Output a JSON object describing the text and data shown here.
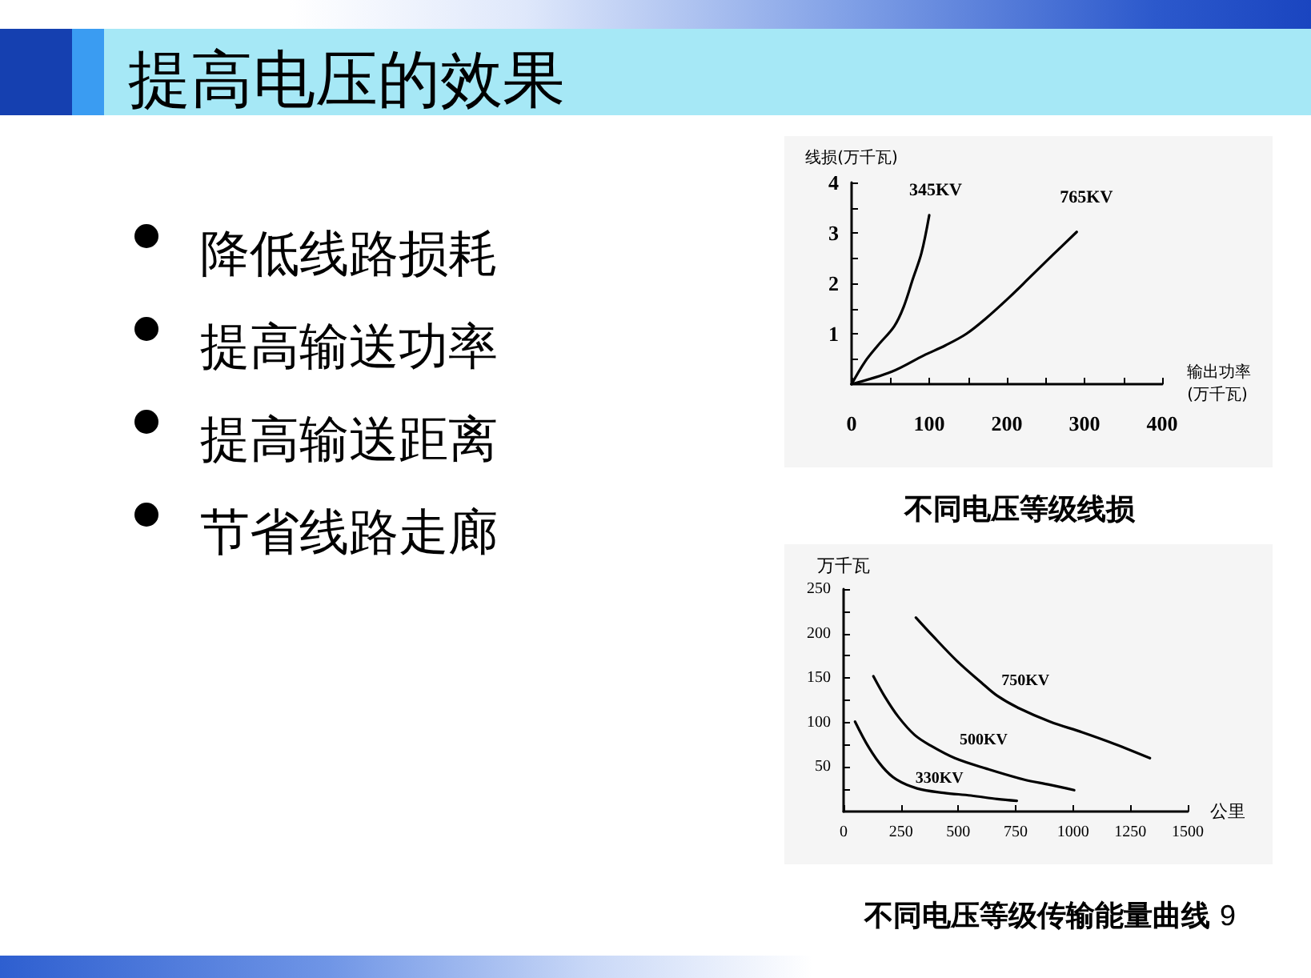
{
  "chart_data": [
    {
      "type": "other",
      "title": "提高电压的效果",
      "annotations": [
        "降低线路损耗",
        "提高输送功率",
        "提高输送距离",
        "节省线路走廊",
        "9"
      ]
    },
    {
      "type": "line",
      "title": "不同电压等级线损",
      "xlabel": "输出功率\n(万千瓦)",
      "ylabel": "线损(万千瓦)",
      "xlim": [
        0,
        400
      ],
      "xticks": [
        0,
        {
          "value": 50,
          "label": null
        },
        100,
        {
          "value": 150,
          "label": null
        },
        200,
        {
          "value": 250,
          "label": null
        },
        300,
        {
          "value": 350,
          "label": null
        },
        400
      ],
      "ylim": [
        0,
        4
      ],
      "yticks": [
        {
          "value": 0.5,
          "label": null
        },
        1,
        {
          "value": 1.5,
          "label": null
        },
        2,
        {
          "value": 2.5,
          "label": null
        },
        3,
        {
          "value": 3.5,
          "label": null
        },
        4
      ],
      "marker": "none",
      "grid": false,
      "legend": false,
      "series": [
        {
          "name": "345KV",
          "color": "#000000",
          "x": [
            0,
            17,
            34,
            55,
            67,
            79,
            90,
            100
          ],
          "values": [
            0,
            0.44,
            0.77,
            1.15,
            1.53,
            2.09,
            2.6,
            3.35
          ]
        },
        {
          "name": "765KV",
          "color": "#000000",
          "x": [
            0,
            52,
            93,
            121,
            148,
            172,
            203,
            231,
            259,
            290
          ],
          "values": [
            0,
            0.25,
            0.57,
            0.77,
            1.0,
            1.29,
            1.72,
            2.14,
            2.56,
            3.02
          ]
        }
      ]
    },
    {
      "type": "line",
      "title": "不同电压等级传输能量曲线",
      "xlabel": "公里",
      "ylabel": "万千瓦",
      "xlim": [
        0,
        1500
      ],
      "xticks": [
        0,
        250,
        500,
        750,
        1000,
        1250,
        1500
      ],
      "ylim": [
        0,
        250
      ],
      "yticks": [
        {
          "value": 25,
          "label": null
        },
        50,
        {
          "value": 75,
          "label": null
        },
        100,
        {
          "value": 125,
          "label": null
        },
        150,
        {
          "value": 175,
          "label": null
        },
        200,
        {
          "value": 225,
          "label": null
        },
        250
      ],
      "marker": "none",
      "grid": false,
      "legend": false,
      "series": [
        {
          "name": "330KV",
          "color": "#000000",
          "x": [
            50,
            110,
            170,
            230,
            320,
            435,
            555,
            670,
            755
          ],
          "values": [
            101,
            72,
            50,
            36,
            26,
            21,
            18,
            14,
            12
          ]
        },
        {
          "name": "500KV",
          "color": "#000000",
          "x": [
            130,
            180,
            240,
            310,
            380,
            485,
            625,
            785,
            900,
            1005
          ],
          "values": [
            152,
            129,
            106,
            86,
            74,
            60,
            48,
            36,
            30,
            24
          ]
        },
        {
          "name": "750KV",
          "color": "#000000",
          "x": [
            315,
            390,
            495,
            600,
            670,
            765,
            900,
            1040,
            1180,
            1335
          ],
          "values": [
            218,
            197,
            169,
            145,
            130,
            116,
            101,
            89,
            76,
            60
          ]
        }
      ]
    }
  ]
}
